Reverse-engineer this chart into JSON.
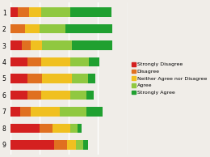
{
  "categories": [
    "1",
    "2",
    "3",
    "4",
    "5",
    "6",
    "7",
    "8",
    "9"
  ],
  "segments": [
    {
      "label": "Strongly Disagree",
      "color": "#d42020",
      "values": [
        5,
        0,
        8,
        12,
        12,
        12,
        7,
        20,
        30
      ]
    },
    {
      "label": "Disagree",
      "color": "#e07020",
      "values": [
        8,
        10,
        6,
        9,
        10,
        9,
        7,
        9,
        9
      ]
    },
    {
      "label": "Neither Agree nor Disagree",
      "color": "#f0c020",
      "values": [
        8,
        10,
        8,
        20,
        20,
        20,
        20,
        12,
        6
      ]
    },
    {
      "label": "Agree",
      "color": "#90c840",
      "values": [
        20,
        18,
        20,
        13,
        11,
        11,
        18,
        5,
        5
      ]
    },
    {
      "label": "Strongly Agree",
      "color": "#20a030",
      "values": [
        28,
        32,
        28,
        7,
        5,
        5,
        11,
        3,
        3
      ]
    }
  ],
  "figsize": [
    2.6,
    1.94
  ],
  "dpi": 100,
  "bg_color": "#f0ede8",
  "grid_color": "#ffffff",
  "legend_fontsize": 4.5,
  "tick_fontsize": 5.5,
  "bar_height": 0.55,
  "xlim": [
    0,
    80
  ]
}
